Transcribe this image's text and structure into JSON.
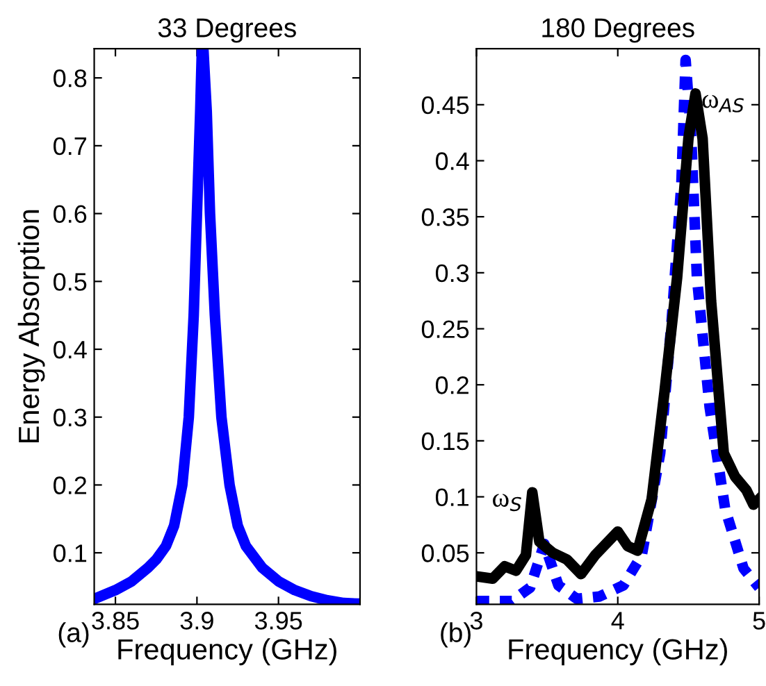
{
  "chart_data": [
    {
      "type": "line",
      "title": "33 Degrees",
      "xlabel": "Frequency (GHz)",
      "ylabel": "Energy Absorption",
      "annotations": [
        "(a)"
      ],
      "xlim": [
        3.837,
        4.0
      ],
      "ylim": [
        0.024,
        0.843
      ],
      "xticks": [
        3.85,
        3.9,
        3.95
      ],
      "yticks": [
        0.1,
        0.2,
        0.3,
        0.4,
        0.5,
        0.6,
        0.7,
        0.8
      ],
      "grid": false,
      "legend": false,
      "series": [
        {
          "color": "#0000ff",
          "line_style": "solid",
          "x": [
            3.837,
            3.85,
            3.86,
            3.87,
            3.875,
            3.881,
            3.886,
            3.891,
            3.895,
            3.898,
            3.9,
            3.902,
            3.903,
            3.904,
            3.906,
            3.908,
            3.911,
            3.915,
            3.92,
            3.925,
            3.93,
            3.94,
            3.95,
            3.96,
            3.97,
            3.98,
            3.99,
            4.0
          ],
          "values": [
            0.032,
            0.045,
            0.058,
            0.078,
            0.09,
            0.11,
            0.14,
            0.2,
            0.3,
            0.45,
            0.6,
            0.75,
            0.84,
            0.84,
            0.75,
            0.6,
            0.45,
            0.3,
            0.2,
            0.14,
            0.11,
            0.078,
            0.058,
            0.045,
            0.036,
            0.03,
            0.026,
            0.025
          ]
        }
      ]
    },
    {
      "type": "line",
      "title": "180 Degrees",
      "xlabel": "Frequency (GHz)",
      "annotations": [
        "(b)",
        {
          "text": "ω$_{S}$",
          "x": 3.395,
          "y": 0.104
        },
        {
          "text": "ω$_{AS}$",
          "x": 4.55,
          "y": 0.46
        }
      ],
      "xlim": [
        3,
        5
      ],
      "ylim": [
        0.004,
        0.5
      ],
      "xticks": [
        3,
        4,
        5
      ],
      "yticks": [
        0.05,
        0.1,
        0.15,
        0.2,
        0.25,
        0.3,
        0.35,
        0.4,
        0.45
      ],
      "grid": false,
      "legend": false,
      "series": [
        {
          "color": "#0000ff",
          "line_style": "dashed",
          "x": [
            3.0,
            3.25,
            3.38,
            3.48,
            3.58,
            3.71,
            3.87,
            4.04,
            4.17,
            4.3,
            4.38,
            4.45,
            4.48,
            4.52,
            4.56,
            4.65,
            4.76,
            4.89,
            5.0
          ],
          "values": [
            0.007,
            0.007,
            0.019,
            0.058,
            0.021,
            0.009,
            0.011,
            0.021,
            0.048,
            0.139,
            0.255,
            0.379,
            0.49,
            0.42,
            0.296,
            0.18,
            0.089,
            0.036,
            0.019
          ]
        },
        {
          "color": "#000000",
          "line_style": "solid",
          "x": [
            3.0,
            3.115,
            3.2,
            3.28,
            3.35,
            3.395,
            3.445,
            3.54,
            3.64,
            3.74,
            3.84,
            4.0,
            4.07,
            4.14,
            4.24,
            4.33,
            4.42,
            4.5,
            4.55,
            4.6,
            4.66,
            4.75,
            4.83,
            4.91,
            4.96,
            5.0
          ],
          "values": [
            0.029,
            0.027,
            0.038,
            0.034,
            0.048,
            0.104,
            0.06,
            0.05,
            0.044,
            0.031,
            0.048,
            0.069,
            0.056,
            0.052,
            0.098,
            0.193,
            0.296,
            0.42,
            0.46,
            0.42,
            0.275,
            0.139,
            0.118,
            0.106,
            0.093,
            0.098
          ]
        }
      ]
    }
  ]
}
